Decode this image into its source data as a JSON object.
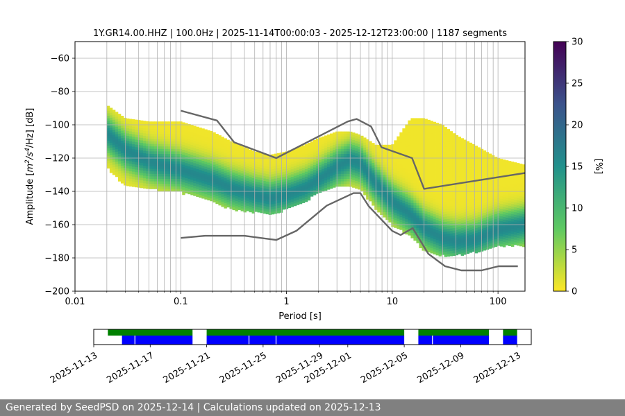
{
  "chart_data": [
    {
      "type": "heatmap",
      "title": "1Y.GR14.00.HHZ | 100.0Hz | 2025-11-14T00:00:03 - 2025-12-12T23:00:00 | 1187 segments",
      "xlabel": "Period [s]",
      "ylabel_main": "Amplitude [",
      "ylabel_unit": "m",
      "ylabel_exp1": "2",
      "ylabel_mid": "/s",
      "ylabel_exp2": "4",
      "ylabel_tail": "/Hz] [dB]",
      "xscale": "log",
      "xlim": [
        0.01,
        180
      ],
      "ylim": [
        -200,
        -50
      ],
      "grid": true,
      "xticks": [
        {
          "value": 0.01,
          "label": "0.01"
        },
        {
          "value": 0.1,
          "label": "0.1"
        },
        {
          "value": 1,
          "label": "1"
        },
        {
          "value": 10,
          "label": "10"
        },
        {
          "value": 100,
          "label": "100"
        }
      ],
      "yticks": [
        {
          "value": -60,
          "label": "−60"
        },
        {
          "value": -80,
          "label": "−80"
        },
        {
          "value": -100,
          "label": "−100"
        },
        {
          "value": -120,
          "label": "−120"
        },
        {
          "value": -140,
          "label": "−140"
        },
        {
          "value": -160,
          "label": "−160"
        },
        {
          "value": -180,
          "label": "−180"
        },
        {
          "value": -200,
          "label": "−200"
        }
      ],
      "density_mode": {
        "period": [
          0.02,
          0.03,
          0.05,
          0.1,
          0.2,
          0.3,
          0.5,
          0.7,
          1,
          1.5,
          2,
          3,
          4,
          5,
          7,
          10,
          15,
          20,
          30,
          40,
          60,
          100,
          180
        ],
        "db": [
          -105,
          -115,
          -122,
          -127,
          -133,
          -138,
          -142,
          -144,
          -142,
          -138,
          -133,
          -125,
          -121,
          -123,
          -135,
          -146,
          -154,
          -162,
          -168,
          -170,
          -169,
          -163,
          -160
        ]
      },
      "density_range": {
        "period": [
          0.02,
          0.03,
          0.05,
          0.1,
          0.2,
          0.3,
          0.5,
          0.7,
          1,
          1.5,
          2,
          3,
          4,
          5,
          7,
          10,
          15,
          20,
          30,
          40,
          60,
          100,
          180
        ],
        "upper_db": [
          -88,
          -96,
          -98,
          -98,
          -104,
          -110,
          -116,
          -118,
          -116,
          -112,
          -108,
          -104,
          -104,
          -106,
          -112,
          -112,
          -96,
          -96,
          -100,
          -106,
          -112,
          -120,
          -124
        ],
        "lower_db": [
          -125,
          -136,
          -138,
          -140,
          -146,
          -150,
          -152,
          -154,
          -150,
          -146,
          -140,
          -136,
          -136,
          -138,
          -150,
          -160,
          -166,
          -175,
          -178,
          -178,
          -176,
          -172,
          -172
        ]
      },
      "noise_models": [
        {
          "name": "high",
          "period": [
            0.1,
            0.22,
            0.32,
            0.8,
            3.8,
            4.6,
            6.3,
            7.9,
            15.4,
            20,
            354.8
          ],
          "db": [
            -91.5,
            -97.4,
            -110.5,
            -120,
            -98,
            -96.5,
            -101,
            -113.5,
            -120,
            -138.5,
            -126
          ]
        },
        {
          "name": "low",
          "period": [
            0.1,
            0.17,
            0.4,
            0.8,
            1.24,
            2.4,
            4.3,
            5,
            6,
            10,
            12,
            15.6,
            21.9,
            31.6,
            45,
            70,
            101,
            154
          ],
          "db": [
            -168,
            -166.7,
            -166.7,
            -169.2,
            -163.7,
            -148.6,
            -141.1,
            -141.1,
            -149,
            -163.8,
            -166.2,
            -162.1,
            -177.5,
            -185,
            -187.5,
            -187.5,
            -185,
            -185
          ]
        }
      ],
      "colorbar": {
        "label": "[%]",
        "range": [
          0,
          30
        ],
        "ticks": [
          {
            "value": 0,
            "label": "0"
          },
          {
            "value": 5,
            "label": "5"
          },
          {
            "value": 10,
            "label": "10"
          },
          {
            "value": 15,
            "label": "15"
          },
          {
            "value": 20,
            "label": "20"
          },
          {
            "value": 25,
            "label": "25"
          },
          {
            "value": 30,
            "label": "30"
          }
        ],
        "colors": [
          "#fde725",
          "#5ec962",
          "#21918c",
          "#3b528b",
          "#440154"
        ]
      }
    },
    {
      "type": "timeline",
      "x_ticks": [
        "2025-11-13",
        "2025-11-17",
        "2025-11-21",
        "2025-11-25",
        "2025-11-29",
        "2025-12-01",
        "2025-12-05",
        "2025-12-09",
        "2025-12-13"
      ],
      "x_start": "2025-11-13",
      "x_end": "2025-12-14",
      "top_bar_color": "#008000",
      "bottom_bar_color": "#0000ff",
      "top_segments": [
        [
          "2025-11-14",
          "2025-11-20"
        ],
        [
          "2025-11-21",
          "2025-12-05"
        ],
        [
          "2025-12-06",
          "2025-12-11"
        ],
        [
          "2025-12-12",
          "2025-12-13"
        ]
      ],
      "bottom_segments": [
        [
          "2025-11-15",
          "2025-11-20"
        ],
        [
          "2025-11-21",
          "2025-12-05"
        ],
        [
          "2025-12-06",
          "2025-12-11"
        ],
        [
          "2025-12-12",
          "2025-12-13"
        ]
      ],
      "gap_days": [
        "2025-11-15T22:00",
        "2025-11-24T00:00",
        "2025-11-25T22:00",
        "2025-12-07T00:00"
      ]
    }
  ],
  "footer": {
    "text": "Generated by SeedPSD on 2025-12-14 | Calculations updated on 2025-12-13"
  }
}
